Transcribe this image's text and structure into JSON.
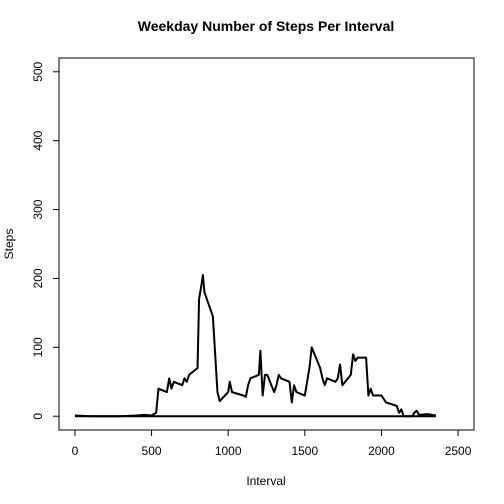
{
  "chart_data": {
    "type": "line",
    "title": "Weekday Number of Steps Per Interval",
    "xlabel": "Interval",
    "ylabel": "Steps",
    "xlim": [
      -104,
      2604
    ],
    "ylim": [
      -20,
      520
    ],
    "xticks": [
      0,
      500,
      1000,
      1500,
      2000,
      2500
    ],
    "yticks": [
      0,
      100,
      200,
      300,
      400,
      500
    ],
    "color": "#000000",
    "series": [
      {
        "x": [
          0,
          100,
          200,
          300,
          400,
          450,
          500,
          530,
          545,
          600,
          615,
          630,
          645,
          700,
          715,
          730,
          745,
          800,
          810,
          825,
          835,
          845,
          900,
          915,
          930,
          945,
          1000,
          1010,
          1025,
          1100,
          1115,
          1130,
          1145,
          1200,
          1210,
          1225,
          1240,
          1255,
          1300,
          1315,
          1330,
          1345,
          1400,
          1415,
          1430,
          1445,
          1500,
          1530,
          1545,
          1600,
          1615,
          1630,
          1645,
          1700,
          1715,
          1730,
          1745,
          1800,
          1815,
          1830,
          1845,
          1900,
          1915,
          1930,
          1945,
          2000,
          2015,
          2030,
          2100,
          2115,
          2130,
          2145,
          2200,
          2215,
          2230,
          2245,
          2300,
          2330,
          2355
        ],
        "values": [
          1,
          0,
          0,
          0,
          1,
          2,
          1,
          5,
          40,
          35,
          55,
          40,
          50,
          45,
          55,
          50,
          60,
          70,
          170,
          190,
          205,
          180,
          145,
          90,
          35,
          22,
          35,
          50,
          35,
          30,
          28,
          45,
          55,
          60,
          95,
          30,
          60,
          60,
          35,
          45,
          60,
          55,
          50,
          20,
          45,
          35,
          30,
          70,
          100,
          70,
          55,
          45,
          55,
          50,
          55,
          75,
          45,
          60,
          90,
          80,
          85,
          85,
          30,
          40,
          30,
          30,
          25,
          20,
          15,
          5,
          10,
          0,
          0,
          5,
          8,
          2,
          3,
          2,
          1
        ]
      },
      {
        "x": [
          0,
          2355
        ],
        "values": [
          0,
          0
        ]
      }
    ]
  }
}
